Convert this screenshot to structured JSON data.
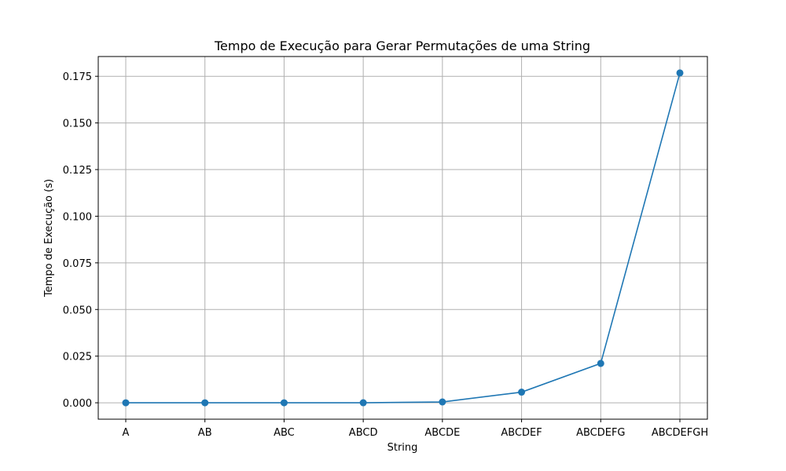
{
  "chart_data": {
    "type": "line",
    "title": "Tempo de Execução para Gerar Permutações de uma String",
    "xlabel": "String",
    "ylabel": "Tempo de Execução (s)",
    "categories": [
      "A",
      "AB",
      "ABC",
      "ABCD",
      "ABCDE",
      "ABCDEF",
      "ABCDEFG",
      "ABCDEFGH"
    ],
    "series": [
      {
        "values": [
          4e-06,
          6e-06,
          1e-05,
          3e-05,
          0.00045,
          0.0057,
          0.0211,
          0.1768
        ]
      }
    ],
    "yticks": [
      "0.000",
      "0.025",
      "0.050",
      "0.075",
      "0.100",
      "0.125",
      "0.150",
      "0.175"
    ],
    "ylim": [
      -0.0088,
      0.1856
    ],
    "grid": true,
    "colors": {
      "line": "#1f77b4",
      "grid": "#b0b0b0"
    }
  }
}
